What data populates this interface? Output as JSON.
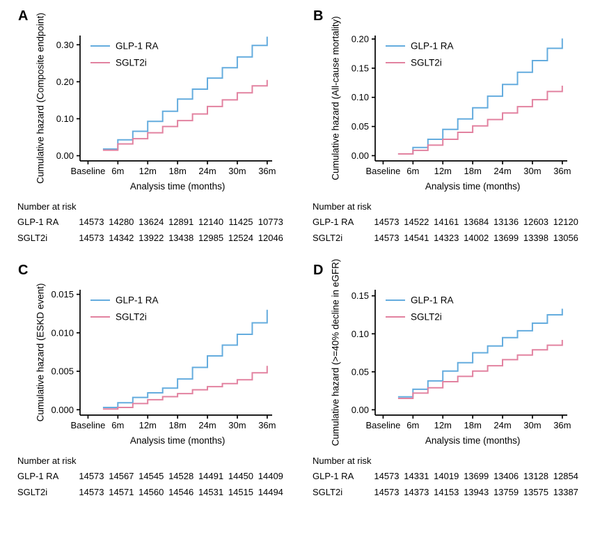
{
  "figure": {
    "background": "#ffffff"
  },
  "colors": {
    "glp1": "#64acde",
    "sglt2i": "#e282a0",
    "axis": "#000000"
  },
  "chart_data": [
    {
      "type": "line",
      "step": true,
      "letter": "A",
      "ylabel": "Cumulative hazard (Composite endpoint)",
      "xlabel": "Analysis time (months)",
      "legend_position": "top-left",
      "grid": false,
      "ymin": -0.014,
      "ymax": 0.325,
      "ytick_values": [
        0.0,
        0.1,
        0.2,
        0.3
      ],
      "ytick_labels": [
        "0.00",
        "0.10",
        "0.20",
        "0.30"
      ],
      "xtick_values": [
        0,
        6,
        12,
        18,
        24,
        30,
        36
      ],
      "xtick_labels": [
        "Baseline",
        "6m",
        "12m",
        "18m",
        "24m",
        "30m",
        "36m"
      ],
      "series": [
        {
          "name": "GLP-1 RA",
          "color_key": "glp1",
          "start": 3,
          "values": [
            0.018,
            0.043,
            0.066,
            0.093,
            0.12,
            0.153,
            0.18,
            0.21,
            0.238,
            0.267,
            0.298
          ],
          "end": 36,
          "end_value": 0.322
        },
        {
          "name": "SGLT2i",
          "color_key": "sglt2i",
          "start": 3,
          "values": [
            0.015,
            0.032,
            0.046,
            0.062,
            0.079,
            0.095,
            0.113,
            0.133,
            0.151,
            0.17,
            0.189
          ],
          "end": 36,
          "end_value": 0.205
        }
      ],
      "risk": {
        "title": "Number at risk",
        "times": [
          0,
          6,
          12,
          18,
          24,
          30,
          36
        ],
        "rows": [
          {
            "label": "GLP-1 RA",
            "values": [
              14573,
              14280,
              13624,
              12891,
              12140,
              11425,
              10773
            ]
          },
          {
            "label": "SGLT2i",
            "values": [
              14573,
              14342,
              13922,
              13438,
              12985,
              12524,
              12046
            ]
          }
        ]
      }
    },
    {
      "type": "line",
      "step": true,
      "letter": "B",
      "ylabel": "Cumulative hazard (All-cause mortality)",
      "xlabel": "Analysis time (months)",
      "legend_position": "top-left",
      "grid": false,
      "ymin": -0.009,
      "ymax": 0.206,
      "ytick_values": [
        0.0,
        0.05,
        0.1,
        0.15,
        0.2
      ],
      "ytick_labels": [
        "0.00",
        "0.05",
        "0.10",
        "0.15",
        "0.20"
      ],
      "xtick_values": [
        0,
        6,
        12,
        18,
        24,
        30,
        36
      ],
      "xtick_labels": [
        "Baseline",
        "6m",
        "12m",
        "18m",
        "24m",
        "30m",
        "36m"
      ],
      "series": [
        {
          "name": "GLP-1 RA",
          "color_key": "glp1",
          "start": 3,
          "values": [
            0.003,
            0.014,
            0.028,
            0.045,
            0.063,
            0.082,
            0.102,
            0.122,
            0.143,
            0.163,
            0.184
          ],
          "end": 36,
          "end_value": 0.201
        },
        {
          "name": "SGLT2i",
          "color_key": "sglt2i",
          "start": 3,
          "values": [
            0.003,
            0.009,
            0.018,
            0.028,
            0.04,
            0.051,
            0.062,
            0.073,
            0.084,
            0.096,
            0.11
          ],
          "end": 36,
          "end_value": 0.12
        }
      ],
      "risk": {
        "title": "Number at risk",
        "times": [
          0,
          6,
          12,
          18,
          24,
          30,
          36
        ],
        "rows": [
          {
            "label": "GLP-1 RA",
            "values": [
              14573,
              14522,
              14161,
              13684,
              13136,
              12603,
              12120
            ]
          },
          {
            "label": "SGLT2i",
            "values": [
              14573,
              14541,
              14323,
              14002,
              13699,
              13398,
              13056
            ]
          }
        ]
      }
    },
    {
      "type": "line",
      "step": true,
      "letter": "C",
      "ylabel": "Cumulative hazard (ESKD event)",
      "xlabel": "Analysis time (months)",
      "legend_position": "top-left",
      "grid": false,
      "ymin": -0.0007,
      "ymax": 0.0156,
      "ytick_values": [
        0.0,
        0.005,
        0.01,
        0.015
      ],
      "ytick_labels": [
        "0.000",
        "0.005",
        "0.010",
        "0.015"
      ],
      "xtick_values": [
        0,
        6,
        12,
        18,
        24,
        30,
        36
      ],
      "xtick_labels": [
        "Baseline",
        "6m",
        "12m",
        "18m",
        "24m",
        "30m",
        "36m"
      ],
      "series": [
        {
          "name": "GLP-1 RA",
          "color_key": "glp1",
          "start": 3,
          "values": [
            0.0003,
            0.0009,
            0.0016,
            0.0022,
            0.0028,
            0.004,
            0.0055,
            0.007,
            0.0084,
            0.0098,
            0.0113
          ],
          "end": 36,
          "end_value": 0.013
        },
        {
          "name": "SGLT2i",
          "color_key": "sglt2i",
          "start": 3,
          "values": [
            0.0001,
            0.0003,
            0.0008,
            0.0013,
            0.0017,
            0.0021,
            0.0026,
            0.003,
            0.0034,
            0.0039,
            0.0048
          ],
          "end": 36,
          "end_value": 0.0057
        }
      ],
      "risk": {
        "title": "Number at risk",
        "times": [
          0,
          6,
          12,
          18,
          24,
          30,
          36
        ],
        "rows": [
          {
            "label": "GLP-1 RA",
            "values": [
              14573,
              14567,
              14545,
              14528,
              14491,
              14450,
              14409
            ]
          },
          {
            "label": "SGLT2i",
            "values": [
              14573,
              14571,
              14560,
              14546,
              14531,
              14515,
              14494
            ]
          }
        ]
      }
    },
    {
      "type": "line",
      "step": true,
      "letter": "D",
      "ylabel": "Cumulative hazard (>=40% decline in eGFR)",
      "xlabel": "Analysis time (months)",
      "legend_position": "top-left",
      "grid": false,
      "ymin": -0.007,
      "ymax": 0.158,
      "ytick_values": [
        0.0,
        0.05,
        0.1,
        0.15
      ],
      "ytick_labels": [
        "0.00",
        "0.05",
        "0.10",
        "0.15"
      ],
      "xtick_values": [
        0,
        6,
        12,
        18,
        24,
        30,
        36
      ],
      "xtick_labels": [
        "Baseline",
        "6m",
        "12m",
        "18m",
        "24m",
        "30m",
        "36m"
      ],
      "series": [
        {
          "name": "GLP-1 RA",
          "color_key": "glp1",
          "start": 3,
          "values": [
            0.017,
            0.027,
            0.038,
            0.051,
            0.062,
            0.075,
            0.084,
            0.095,
            0.104,
            0.114,
            0.125
          ],
          "end": 36,
          "end_value": 0.133
        },
        {
          "name": "SGLT2i",
          "color_key": "sglt2i",
          "start": 3,
          "values": [
            0.015,
            0.022,
            0.029,
            0.037,
            0.044,
            0.051,
            0.058,
            0.066,
            0.072,
            0.079,
            0.085
          ],
          "end": 36,
          "end_value": 0.092
        }
      ],
      "risk": {
        "title": "Number at risk",
        "times": [
          0,
          6,
          12,
          18,
          24,
          30,
          36
        ],
        "rows": [
          {
            "label": "GLP-1 RA",
            "values": [
              14573,
              14331,
              14019,
              13699,
              13406,
              13128,
              12854
            ]
          },
          {
            "label": "SGLT2i",
            "values": [
              14573,
              14373,
              14153,
              13943,
              13759,
              13575,
              13387
            ]
          }
        ]
      }
    }
  ]
}
